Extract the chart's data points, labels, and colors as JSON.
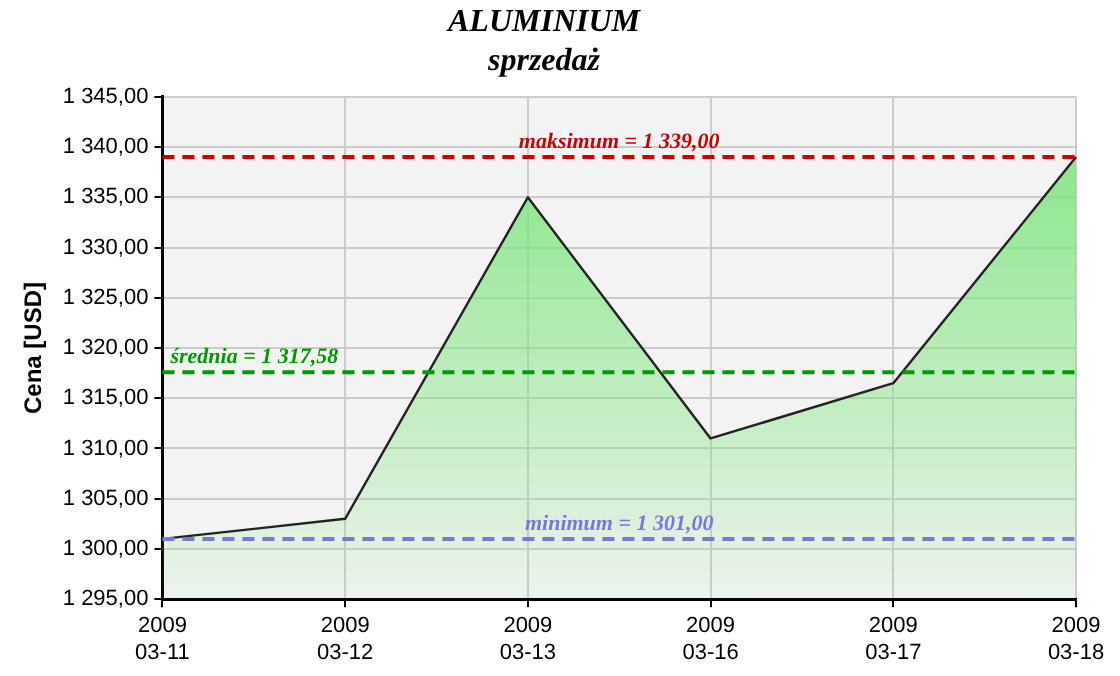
{
  "chart_data": {
    "type": "area",
    "title": "ALUMINIUM",
    "subtitle": "sprzedaż",
    "ylabel": "Cena [USD]",
    "categories": [
      "2009\n03-11",
      "2009\n03-12",
      "2009\n03-13",
      "2009\n03-16",
      "2009\n03-17",
      "2009\n03-18"
    ],
    "series": [
      {
        "color": "#7ee57e",
        "values": [
          1301,
          1303,
          1335,
          1311,
          1316.5,
          1339
        ]
      }
    ],
    "ylim": [
      1295,
      1345
    ],
    "yticks": [
      {
        "value": 1295,
        "label": "1 295,00"
      },
      {
        "value": 1300,
        "label": "1 300,00"
      },
      {
        "value": 1305,
        "label": "1 305,00"
      },
      {
        "value": 1310,
        "label": "1 310,00"
      },
      {
        "value": 1315,
        "label": "1 315,00"
      },
      {
        "value": 1320,
        "label": "1 320,00"
      },
      {
        "value": 1325,
        "label": "1 325,00"
      },
      {
        "value": 1330,
        "label": "1 330,00"
      },
      {
        "value": 1335,
        "label": "1 335,00"
      },
      {
        "value": 1340,
        "label": "1 340,00"
      },
      {
        "value": 1345,
        "label": "1 345,00"
      }
    ],
    "ref_lines": [
      {
        "axis": "y",
        "value": 1339,
        "label": "maksimum = 1 339,00",
        "color": "#cc0000",
        "line_style": "dashed"
      },
      {
        "axis": "y",
        "value": 1317.58,
        "label": "średnia = 1 317,58",
        "color": "#009900",
        "line_style": "dashed"
      },
      {
        "axis": "y",
        "value": 1301,
        "label": "minimum = 1 301,00",
        "color": "#7777dd",
        "line_style": "dashed"
      }
    ],
    "grid": true,
    "legend": false,
    "marker": "none",
    "line_style": "solid"
  }
}
